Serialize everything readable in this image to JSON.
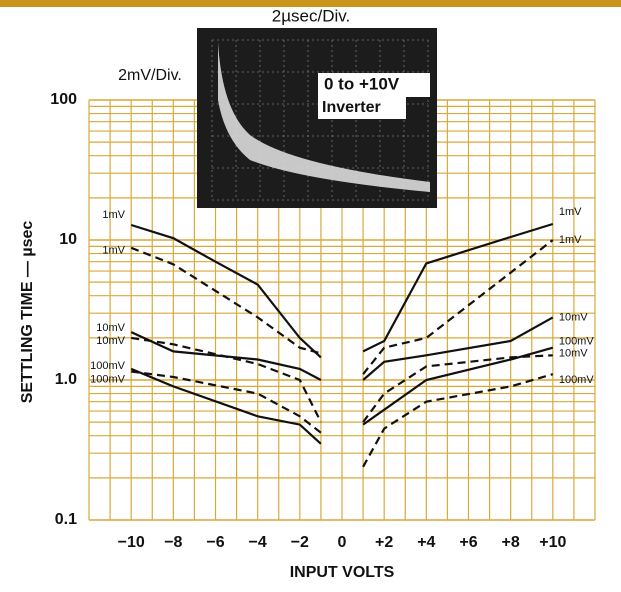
{
  "chart_data": {
    "type": "line",
    "y_label": "SETTLING TIME — µsec",
    "x_label": "INPUT VOLTS",
    "annotations": [
      "2µsec/Div.",
      "2mV/Div.",
      "0 to +10V",
      "Inverter"
    ],
    "log_y": true,
    "xlim": [
      -12,
      12
    ],
    "ylim": [
      0.1,
      100
    ],
    "xticks": [
      {
        "value": -10,
        "label": "−10"
      },
      {
        "value": -8,
        "label": "−8"
      },
      {
        "value": -6,
        "label": "−6"
      },
      {
        "value": -4,
        "label": "−4"
      },
      {
        "value": -2,
        "label": "−2"
      },
      0,
      {
        "value": 2,
        "label": "+2"
      },
      {
        "value": 4,
        "label": "+4"
      },
      {
        "value": 6,
        "label": "+6"
      },
      {
        "value": 8,
        "label": "+8"
      },
      {
        "value": 10,
        "label": "+10"
      }
    ],
    "yticks": [
      0.1,
      1,
      10,
      100
    ],
    "ytick_labels": [
      "0.1",
      "1.0",
      "10",
      "100"
    ],
    "xgrid": [
      -12,
      -11,
      -10,
      -9,
      -8,
      -7,
      -6,
      -5,
      -4,
      -3,
      -2,
      -1,
      0,
      1,
      2,
      3,
      4,
      5,
      6,
      7,
      8,
      9,
      10,
      11,
      12
    ],
    "ygrid": [
      0.2,
      0.3,
      0.4,
      0.5,
      0.6,
      0.7,
      0.8,
      0.9,
      2,
      3,
      4,
      5,
      6,
      7,
      8,
      9,
      20,
      30,
      40,
      50,
      60,
      70,
      80,
      90
    ],
    "grid_color": "#d9a93a",
    "series": [
      {
        "name": "1mV",
        "color": "#111111",
        "dash": false,
        "x": [
          -10,
          -8,
          -6,
          -4,
          -2,
          -1,
          0,
          1,
          2,
          4,
          8,
          10
        ],
        "values": [
          12.8,
          10.3,
          7,
          4.8,
          2,
          1.45,
          null,
          1.6,
          1.9,
          6.8,
          10.5,
          13
        ]
      },
      {
        "name": "1mV",
        "color": "#111111",
        "dash": true,
        "x": [
          -10,
          -8,
          -4,
          -2,
          -1,
          0,
          1,
          2,
          4,
          10
        ],
        "values": [
          8.8,
          6.7,
          2.8,
          1.7,
          1.55,
          null,
          1.1,
          1.7,
          2,
          10
        ]
      },
      {
        "name": "10mV",
        "color": "#111111",
        "dash": false,
        "x": [
          -10,
          -8,
          -4,
          -2,
          -1,
          0,
          1,
          2,
          4,
          8,
          10
        ],
        "values": [
          2.2,
          1.6,
          1.4,
          1.2,
          1,
          null,
          1,
          1.35,
          1.5,
          1.9,
          2.8
        ]
      },
      {
        "name": "10mV",
        "color": "#111111",
        "dash": true,
        "x": [
          -10,
          -8,
          -4,
          -2,
          -1,
          0,
          1,
          2,
          4,
          8,
          10
        ],
        "values": [
          2,
          1.8,
          1.3,
          1,
          0.5,
          null,
          0.5,
          0.8,
          1.25,
          1.45,
          1.5
        ]
      },
      {
        "name": "100mV",
        "color": "#111111",
        "dash": false,
        "x": [
          -10,
          -8,
          -4,
          -2,
          -1,
          0,
          1,
          4,
          8,
          10
        ],
        "values": [
          1.2,
          0.9,
          0.55,
          0.48,
          0.35,
          null,
          0.48,
          1,
          1.4,
          1.7
        ]
      },
      {
        "name": "100mV",
        "color": "#111111",
        "dash": true,
        "x": [
          -10,
          -8,
          -4,
          -2,
          -1,
          0,
          1,
          2,
          4,
          8,
          10
        ],
        "values": [
          1.15,
          1.05,
          0.8,
          0.55,
          0.42,
          null,
          0.24,
          0.45,
          0.7,
          0.9,
          1.1
        ]
      }
    ]
  }
}
